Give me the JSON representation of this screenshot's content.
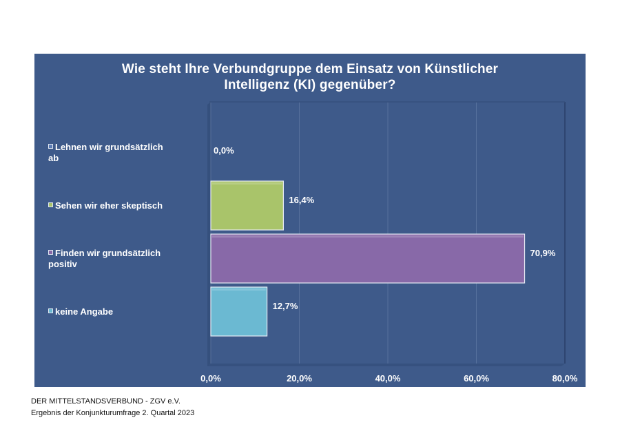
{
  "chart_data": {
    "type": "bar",
    "orientation": "horizontal",
    "title": "Wie steht Ihre Verbundgruppe dem Einsatz von Künstlicher Intelligenz (KI) gegenüber?",
    "title_lines": [
      "Wie steht Ihre Verbundgruppe dem Einsatz von Künstlicher",
      "Intelligenz (KI) gegenüber?"
    ],
    "categories": [
      "Lehnen wir grundsätzlich ab",
      "Sehen wir eher skeptisch",
      "Finden wir grundsätzlich positiv",
      "keine Angabe"
    ],
    "category_label_lines": [
      [
        "Lehnen wir grundsätzlich",
        "ab"
      ],
      [
        "Sehen wir eher skeptisch"
      ],
      [
        "Finden wir grundsätzlich",
        "positiv"
      ],
      [
        "keine Angabe"
      ]
    ],
    "values": [
      0.0,
      16.4,
      70.9,
      12.7
    ],
    "data_labels": [
      "0,0%",
      "16,4%",
      "70,9%",
      "12,7%"
    ],
    "colors": [
      "#5b7bb5",
      "#a9c46a",
      "#8869a8",
      "#6bb9d2"
    ],
    "xlim": [
      0,
      80
    ],
    "x_ticks": [
      0,
      20,
      40,
      60,
      80
    ],
    "x_tick_labels": [
      "0,0%",
      "20,0%",
      "40,0%",
      "60,0%",
      "80,0%"
    ],
    "grid": true,
    "legend": "none"
  },
  "panel_bg": "#3e5a8a",
  "footer": {
    "line1": "DER MITTELSTANDSVERBUND - ZGV e.V.",
    "line2": "Ergebnis der Konjunkturumfrage 2. Quartal 2023"
  }
}
